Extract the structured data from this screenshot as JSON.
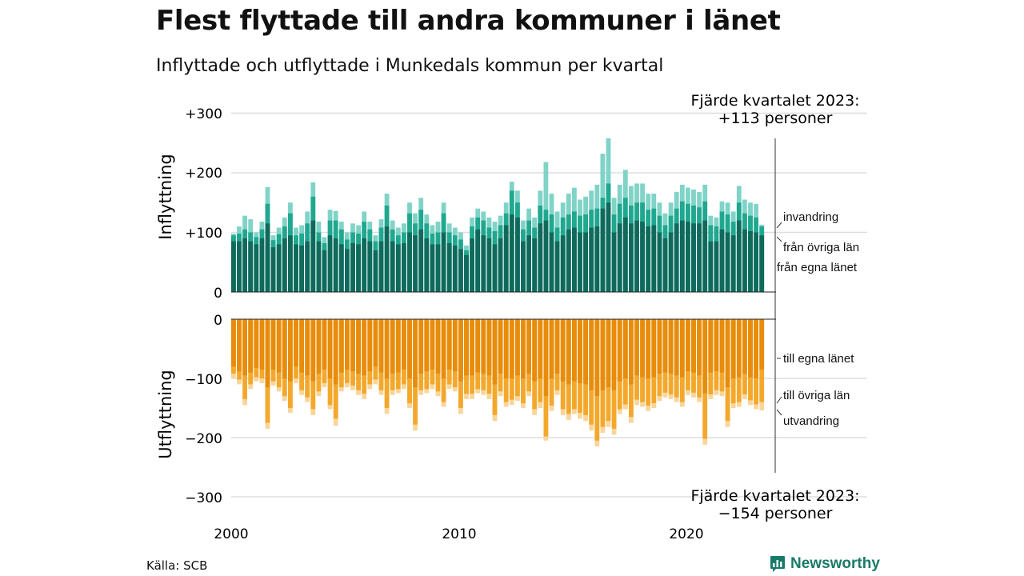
{
  "title": "Flest flyttade till andra kommuner i länet",
  "subtitle": "Inflyttade och utflyttade i Munkedals kommun per kvartal",
  "source": "Källa: SCB",
  "brand": "Newsworthy",
  "colors": {
    "in_same_county": "#0f6a5c",
    "in_other_county": "#1fa88f",
    "in_immigration": "#80d3c7",
    "out_same_county": "#e88c0c",
    "out_other_county": "#f3a82c",
    "out_emigration": "#f9d59a"
  },
  "chart_data": {
    "type": "bar",
    "x_ticks": [
      "2000",
      "2010",
      "2020"
    ],
    "top_panel": {
      "ylabel": "Inflyttning",
      "yticks": [
        "+300",
        "+200",
        "+100",
        "0"
      ],
      "ylim": [
        0,
        300
      ],
      "annotation_line1": "Fjärde kvartalet 2023:",
      "annotation_line2": "+113 personer",
      "series_labels": [
        "invandring",
        "från övriga län",
        "från egna länet"
      ]
    },
    "bottom_panel": {
      "ylabel": "Utflyttning",
      "yticks": [
        "0",
        "−100",
        "−200",
        "−300"
      ],
      "ylim": [
        -300,
        0
      ],
      "annotation_line1": "Fjärde kvartalet 2023:",
      "annotation_line2": "−154 personer",
      "series_labels": [
        "till egna länet",
        "till övriga län",
        "utvandring"
      ]
    },
    "quarters_start": "2000 Q1",
    "quarters_end": "2023 Q4",
    "inflow_totals": [
      98,
      110,
      128,
      122,
      100,
      118,
      176,
      95,
      108,
      125,
      150,
      108,
      112,
      135,
      184,
      118,
      92,
      138,
      136,
      118,
      100,
      115,
      112,
      135,
      118,
      95,
      122,
      165,
      120,
      108,
      115,
      150,
      132,
      158,
      130,
      112,
      118,
      150,
      115,
      108,
      100,
      78,
      125,
      140,
      135,
      125,
      118,
      128,
      150,
      185,
      170,
      120,
      140,
      125,
      170,
      218,
      165,
      135,
      150,
      165,
      175,
      155,
      160,
      170,
      180,
      232,
      258,
      158,
      180,
      205,
      178,
      182,
      182,
      165,
      165,
      150,
      132,
      150,
      168,
      180,
      175,
      172,
      168,
      180,
      128,
      125,
      152,
      150,
      135,
      178,
      155,
      150,
      148,
      113
    ],
    "inflow_same_county": [
      85,
      85,
      90,
      85,
      80,
      90,
      115,
      75,
      80,
      90,
      95,
      80,
      78,
      85,
      120,
      85,
      70,
      95,
      90,
      80,
      72,
      82,
      80,
      90,
      85,
      70,
      85,
      110,
      85,
      80,
      82,
      100,
      95,
      105,
      90,
      80,
      80,
      100,
      82,
      78,
      72,
      62,
      90,
      105,
      95,
      90,
      80,
      90,
      112,
      130,
      125,
      85,
      95,
      90,
      115,
      120,
      100,
      85,
      95,
      105,
      108,
      100,
      100,
      108,
      110,
      140,
      150,
      100,
      115,
      125,
      115,
      120,
      118,
      110,
      112,
      100,
      90,
      100,
      115,
      120,
      118,
      115,
      115,
      120,
      85,
      85,
      105,
      100,
      95,
      120,
      105,
      102,
      100,
      95
    ],
    "inflow_other_county": [
      95,
      98,
      105,
      100,
      92,
      105,
      148,
      87,
      97,
      110,
      132,
      95,
      98,
      115,
      160,
      100,
      82,
      120,
      120,
      105,
      88,
      100,
      98,
      118,
      105,
      85,
      108,
      145,
      105,
      95,
      100,
      132,
      115,
      138,
      115,
      98,
      100,
      132,
      100,
      95,
      88,
      70,
      110,
      125,
      120,
      108,
      102,
      112,
      132,
      170,
      150,
      105,
      120,
      108,
      145,
      138,
      130,
      108,
      125,
      130,
      135,
      128,
      130,
      138,
      140,
      158,
      182,
      130,
      148,
      158,
      145,
      150,
      150,
      138,
      140,
      128,
      112,
      128,
      140,
      152,
      148,
      145,
      142,
      152,
      112,
      110,
      135,
      130,
      118,
      150,
      132,
      128,
      125,
      110
    ],
    "outflow_totals": [
      -100,
      -110,
      -145,
      -118,
      -105,
      -108,
      -185,
      -112,
      -122,
      -138,
      -158,
      -108,
      -128,
      -140,
      -162,
      -130,
      -115,
      -152,
      -180,
      -122,
      -115,
      -120,
      -128,
      -135,
      -118,
      -110,
      -128,
      -160,
      -128,
      -125,
      -118,
      -150,
      -188,
      -128,
      -125,
      -118,
      -130,
      -148,
      -118,
      -122,
      -160,
      -135,
      -135,
      -125,
      -128,
      -135,
      -172,
      -130,
      -148,
      -145,
      -138,
      -150,
      -130,
      -162,
      -150,
      -205,
      -155,
      -128,
      -162,
      -170,
      -160,
      -168,
      -172,
      -188,
      -215,
      -192,
      -182,
      -195,
      -160,
      -152,
      -175,
      -145,
      -148,
      -155,
      -150,
      -138,
      -132,
      -135,
      -140,
      -148,
      -128,
      -132,
      -140,
      -212,
      -135,
      -128,
      -130,
      -182,
      -150,
      -148,
      -135,
      -145,
      -152,
      -154
    ],
    "outflow_same_county": [
      -80,
      -88,
      -95,
      -90,
      -82,
      -85,
      -115,
      -85,
      -90,
      -100,
      -105,
      -80,
      -90,
      -95,
      -105,
      -92,
      -85,
      -100,
      -110,
      -90,
      -85,
      -88,
      -92,
      -95,
      -88,
      -80,
      -90,
      -100,
      -92,
      -90,
      -85,
      -100,
      -115,
      -92,
      -88,
      -85,
      -92,
      -100,
      -85,
      -88,
      -105,
      -95,
      -95,
      -90,
      -92,
      -95,
      -110,
      -92,
      -100,
      -100,
      -95,
      -100,
      -92,
      -105,
      -100,
      -130,
      -100,
      -92,
      -105,
      -110,
      -105,
      -108,
      -110,
      -120,
      -130,
      -120,
      -115,
      -120,
      -105,
      -100,
      -110,
      -95,
      -98,
      -100,
      -98,
      -92,
      -90,
      -92,
      -95,
      -98,
      -88,
      -90,
      -95,
      -125,
      -90,
      -88,
      -90,
      -115,
      -100,
      -98,
      -92,
      -98,
      -100,
      -85
    ],
    "outflow_other_county": [
      -92,
      -102,
      -135,
      -110,
      -98,
      -100,
      -175,
      -105,
      -115,
      -130,
      -150,
      -100,
      -120,
      -132,
      -152,
      -122,
      -108,
      -145,
      -168,
      -115,
      -108,
      -112,
      -120,
      -126,
      -110,
      -102,
      -120,
      -150,
      -120,
      -118,
      -110,
      -142,
      -178,
      -120,
      -118,
      -110,
      -122,
      -140,
      -110,
      -115,
      -150,
      -126,
      -126,
      -118,
      -120,
      -126,
      -162,
      -122,
      -140,
      -136,
      -130,
      -142,
      -122,
      -152,
      -140,
      -198,
      -146,
      -120,
      -152,
      -160,
      -152,
      -158,
      -162,
      -178,
      -205,
      -182,
      -172,
      -185,
      -152,
      -144,
      -165,
      -136,
      -140,
      -146,
      -142,
      -130,
      -124,
      -127,
      -132,
      -140,
      -120,
      -124,
      -132,
      -202,
      -127,
      -120,
      -122,
      -172,
      -142,
      -140,
      -127,
      -137,
      -144,
      -140
    ]
  }
}
